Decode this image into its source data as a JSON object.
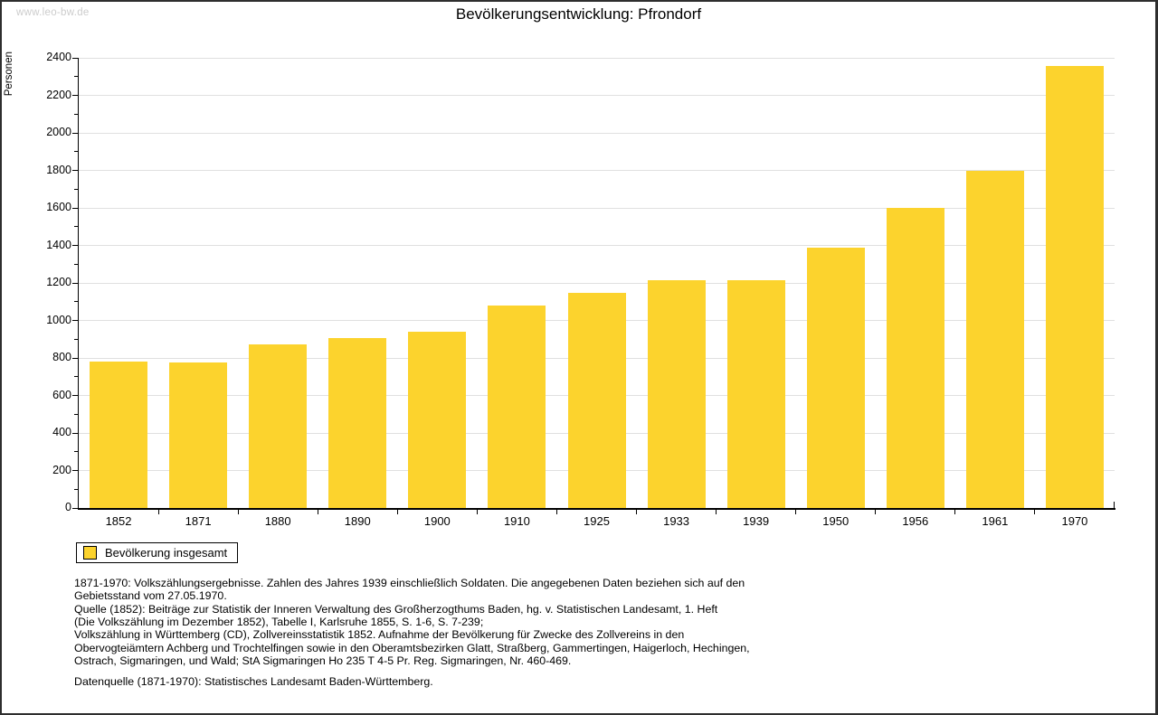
{
  "window": {
    "watermark": "www.leo-bw.de"
  },
  "title": "Bevölkerungsentwicklung: Pfrondorf",
  "chart_data": {
    "type": "bar",
    "title": "Bevölkerungsentwicklung: Pfrondorf",
    "xlabel": "",
    "ylabel": "Personen",
    "categories": [
      "1852",
      "1871",
      "1880",
      "1890",
      "1900",
      "1910",
      "1925",
      "1933",
      "1939",
      "1950",
      "1956",
      "1961",
      "1970"
    ],
    "series": [
      {
        "name": "Bevölkerung insgesamt",
        "values": [
          780,
          775,
          870,
          905,
          940,
          1080,
          1145,
          1215,
          1215,
          1390,
          1600,
          1800,
          2355
        ]
      }
    ],
    "ylim": [
      0,
      2400
    ],
    "ytick_step": 200,
    "ytick_minor_step": 100,
    "grid": true,
    "bar_color": "#FCD32D",
    "gridline_color": "#e0e0e0",
    "legend_position": "bottom-left"
  },
  "legend": {
    "label": "Bevölkerung insgesamt",
    "swatch_color": "#FCD32D"
  },
  "footnotes": {
    "lines": [
      "1871-1970: Volkszählungsergebnisse. Zahlen des Jahres 1939 einschließlich Soldaten. Die angegebenen Daten beziehen sich auf den",
      "Gebietsstand vom 27.05.1970.",
      "Quelle (1852): Beiträge zur Statistik der Inneren Verwaltung des Großherzogthums Baden, hg. v. Statistischen Landesamt, 1. Heft",
      "(Die Volkszählung im Dezember 1852), Tabelle I, Karlsruhe 1855, S. 1-6, S. 7-239;",
      "Volkszählung in Württemberg (CD), Zollvereinsstatistik 1852. Aufnahme der Bevölkerung für Zwecke des Zollvereins in den",
      "Obervogteiämtern Achberg und Trochtelfingen sowie in den Oberamtsbezirken Glatt, Straßberg, Gammertingen, Haigerloch, Hechingen,",
      "Ostrach, Sigmaringen, und Wald; StA Sigmaringen Ho 235 T 4-5 Pr. Reg. Sigmaringen, Nr. 460-469."
    ],
    "datenquelle": "Datenquelle (1871-1970): Statistisches Landesamt Baden-Württemberg."
  }
}
